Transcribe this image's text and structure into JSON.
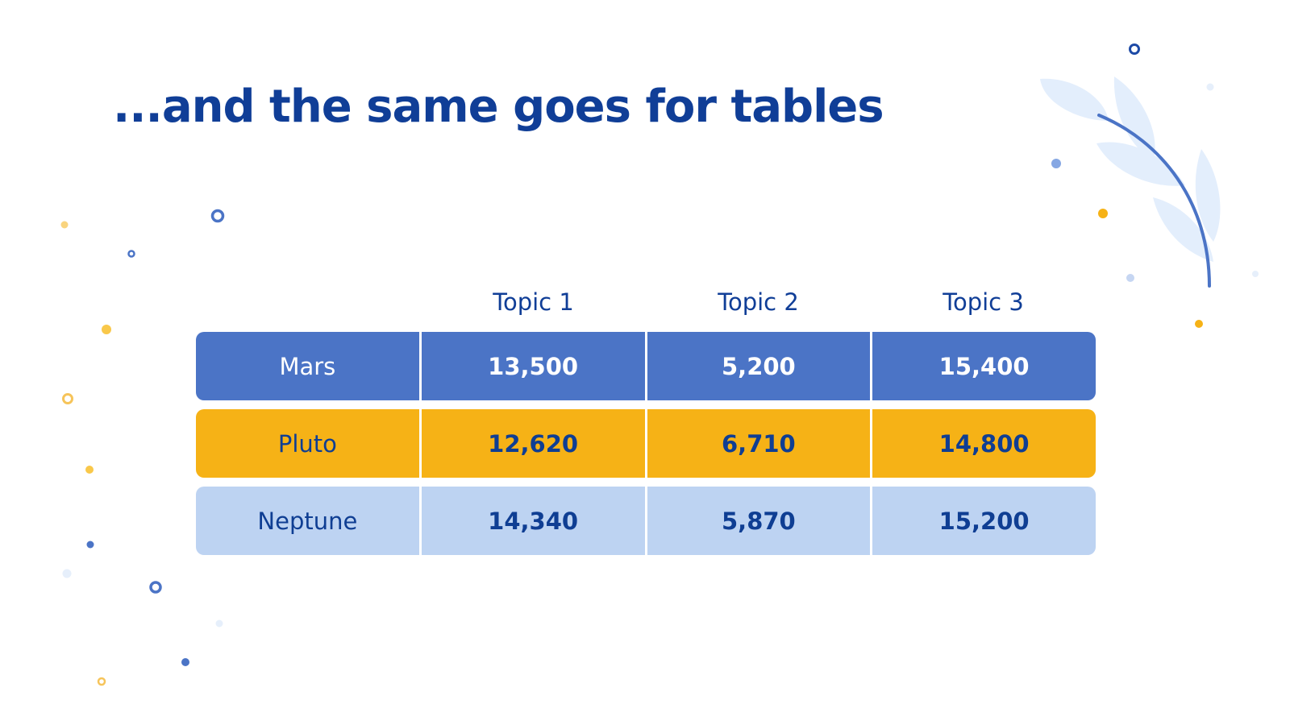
{
  "slide": {
    "title": "...and the same goes for tables"
  },
  "table": {
    "headers": [
      "Topic 1",
      "Topic 2",
      "Topic 3"
    ],
    "rows": [
      {
        "label": "Mars",
        "values": [
          "13,500",
          "5,200",
          "15,400"
        ],
        "bg_color": "#4b74c6",
        "label_color": "#ffffff",
        "value_color": "#ffffff"
      },
      {
        "label": "Pluto",
        "values": [
          "12,620",
          "6,710",
          "14,800"
        ],
        "bg_color": "#f6b216",
        "label_color": "#0f3e93",
        "value_color": "#0f3e93"
      },
      {
        "label": "Neptune",
        "values": [
          "14,340",
          "5,870",
          "15,200"
        ],
        "bg_color": "#bdd3f2",
        "label_color": "#0f3e93",
        "value_color": "#0f3e93"
      }
    ]
  },
  "theme": {
    "title_color": "#103e97",
    "accent_blue": "#4b74c6",
    "accent_yellow": "#f6b216",
    "accent_light_blue": "#bdd3f2"
  },
  "decorations": {
    "icons": [
      "leaf-branch-icon",
      "ring-icon",
      "dot-icon"
    ]
  }
}
